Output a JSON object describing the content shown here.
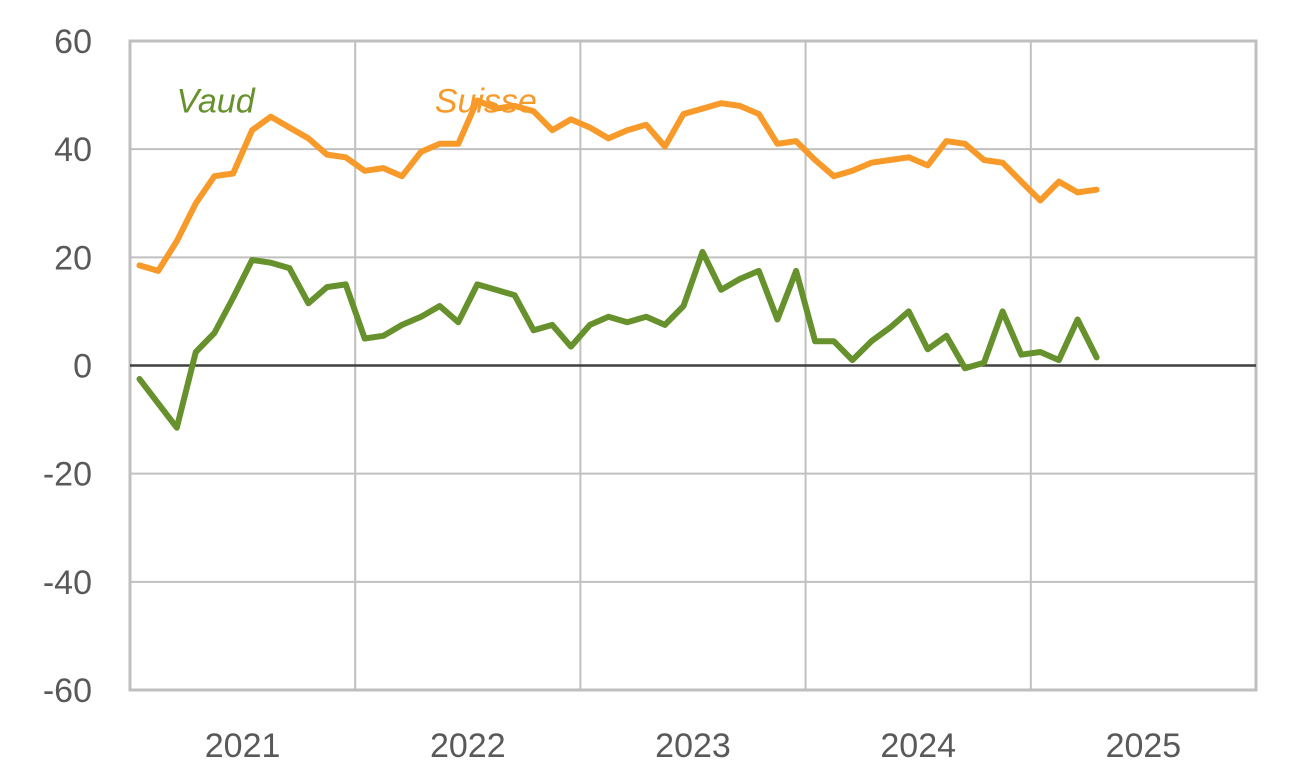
{
  "chart_data": {
    "type": "line",
    "title": "",
    "xlabel": "",
    "ylabel": "",
    "ylim": [
      -60,
      60
    ],
    "y_ticks": [
      60,
      40,
      20,
      0,
      -20,
      -40,
      -60
    ],
    "y_tick_labels": [
      "60",
      "40",
      "20",
      "0",
      "-20",
      "-40",
      "-60"
    ],
    "x_tick_labels": [
      "2021",
      "2022",
      "2023",
      "2024",
      "2025"
    ],
    "xlim": [
      2021.0,
      2026.0
    ],
    "grid": true,
    "colors": {
      "axis_zero": "#404040",
      "grid": "#c0c0c0",
      "frame": "#bfbfbf"
    },
    "series": [
      {
        "name": "Vaud",
        "color": "#66912d",
        "x": [
          2021.042,
          2021.125,
          2021.208,
          2021.292,
          2021.375,
          2021.458,
          2021.542,
          2021.625,
          2021.708,
          2021.792,
          2021.875,
          2021.958,
          2022.042,
          2022.125,
          2022.208,
          2022.292,
          2022.375,
          2022.458,
          2022.542,
          2022.625,
          2022.708,
          2022.792,
          2022.875,
          2022.958,
          2023.042,
          2023.125,
          2023.208,
          2023.292,
          2023.375,
          2023.458,
          2023.542,
          2023.625,
          2023.708,
          2023.792,
          2023.875,
          2023.958,
          2024.042,
          2024.125,
          2024.208,
          2024.292,
          2024.375,
          2024.458,
          2024.542,
          2024.625,
          2024.708,
          2024.792,
          2024.875,
          2024.958,
          2025.042,
          2025.125,
          2025.208,
          2025.292
        ],
        "values": [
          -2.5,
          -7,
          -11.5,
          2.5,
          6,
          12.5,
          19.5,
          19,
          18,
          11.5,
          14.5,
          15,
          5,
          5.5,
          7.5,
          9,
          11,
          8,
          15,
          14,
          13,
          6.5,
          7.5,
          3.5,
          7.5,
          9,
          8,
          9,
          7.5,
          11,
          21,
          14,
          16,
          17.5,
          8.5,
          17.5,
          4.5,
          4.5,
          1,
          4.5,
          7,
          10,
          3,
          5.5,
          -0.5,
          0.5,
          10,
          2,
          2.5,
          1,
          8.5,
          1.5
        ]
      },
      {
        "name": "Suisse",
        "color": "#f79a2a",
        "x": [
          2021.042,
          2021.125,
          2021.208,
          2021.292,
          2021.375,
          2021.458,
          2021.542,
          2021.625,
          2021.708,
          2021.792,
          2021.875,
          2021.958,
          2022.042,
          2022.125,
          2022.208,
          2022.292,
          2022.375,
          2022.458,
          2022.542,
          2022.625,
          2022.708,
          2022.792,
          2022.875,
          2022.958,
          2023.042,
          2023.125,
          2023.208,
          2023.292,
          2023.375,
          2023.458,
          2023.542,
          2023.625,
          2023.708,
          2023.792,
          2023.875,
          2023.958,
          2024.042,
          2024.125,
          2024.208,
          2024.292,
          2024.375,
          2024.458,
          2024.542,
          2024.625,
          2024.708,
          2024.792,
          2024.875,
          2024.958,
          2025.042,
          2025.125,
          2025.208,
          2025.292
        ],
        "values": [
          18.5,
          17.5,
          23,
          30,
          35,
          35.5,
          43.5,
          46,
          44,
          42,
          39,
          38.5,
          36,
          36.5,
          35,
          39.5,
          41,
          41,
          49,
          47.5,
          48,
          47,
          43.5,
          45.5,
          44,
          42,
          43.5,
          44.5,
          40.5,
          46.5,
          47.5,
          48.5,
          48,
          46.5,
          41,
          41.5,
          38,
          35,
          36,
          37.5,
          38,
          38.5,
          37,
          41.5,
          41,
          38,
          37.5,
          34,
          30.5,
          34,
          32,
          32.5
        ]
      }
    ],
    "series_labels": [
      {
        "text": "Vaud",
        "color": "#66912d",
        "x": 2021.38,
        "y": 49
      },
      {
        "text": "Suisse",
        "color": "#f79a2a",
        "x": 2022.58,
        "y": 49
      }
    ]
  }
}
